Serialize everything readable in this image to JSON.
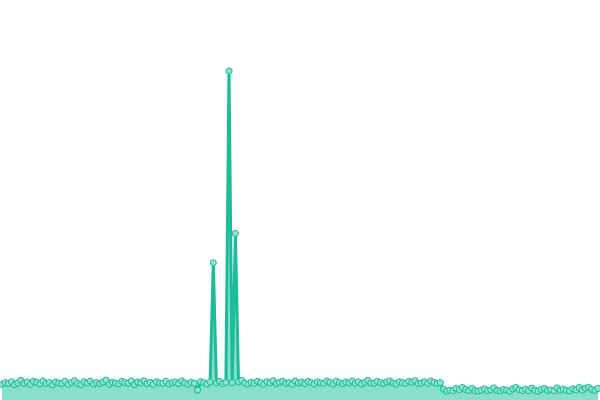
{
  "chart_data": {
    "type": "area",
    "title": "",
    "xlabel": "",
    "ylabel": "",
    "grid": false,
    "legend": "none",
    "ylim": [
      0,
      100
    ],
    "colors": {
      "line": "#1abc9c",
      "fill": "#88e0cc",
      "point_fill": "#8fe3cf"
    },
    "values": [
      3.6,
      4.1,
      3.8,
      4.4,
      3.5,
      4.0,
      4.8,
      3.9,
      4.3,
      3.6,
      4.5,
      4.2,
      3.7,
      4.6,
      3.9,
      4.1,
      3.4,
      4.3,
      4.0,
      3.8,
      4.5,
      3.6,
      4.2,
      4.7,
      3.9,
      3.5,
      4.4,
      4.0,
      4.6,
      3.7,
      4.1,
      3.8,
      4.3,
      4.9,
      3.6,
      4.2,
      4.0,
      3.7,
      4.5,
      4.1,
      3.9,
      4.6,
      3.5,
      4.3,
      4.0,
      4.7,
      3.8,
      4.2,
      3.6,
      4.4,
      4.0,
      3.9,
      4.5,
      3.7,
      4.1,
      4.3,
      3.8,
      4.6,
      4.0,
      3.6,
      4.2,
      3.9,
      1.8,
      4.4,
      4.1,
      3.7,
      4.3,
      41,
      4.0,
      4.5,
      3.8,
      4.2,
      100,
      4.1,
      50,
      4.3,
      4.8,
      4.0,
      3.7,
      4.2,
      3.9,
      4.5,
      4.1,
      3.6,
      4.4,
      4.0,
      4.7,
      3.8,
      4.2,
      4.5,
      3.9,
      4.1,
      3.6,
      4.6,
      4.0,
      4.3,
      3.8,
      4.5,
      4.1,
      3.7,
      4.4,
      4.0,
      3.9,
      4.6,
      4.2,
      3.7,
      4.5,
      4.1,
      3.8,
      4.3,
      4.0,
      4.6,
      3.9,
      4.4,
      3.7,
      4.2,
      4.8,
      4.0,
      3.9,
      4.5,
      4.1,
      3.8,
      4.3,
      4.6,
      4.0,
      3.7,
      4.4,
      4.1,
      3.9,
      4.5,
      4.2,
      4.7,
      3.8,
      4.0,
      4.4,
      3.9,
      4.6,
      4.2,
      3.8,
      4.1,
      2.1,
      1.5,
      1.8,
      1.6,
      2.3,
      1.9,
      2.6,
      2.0,
      1.7,
      2.4,
      1.6,
      1.5,
      1.8,
      2.2,
      1.6,
      1.9,
      2.5,
      1.7,
      1.6,
      2.0,
      1.8,
      1.5,
      2.2,
      2.6,
      1.9,
      1.7,
      2.1,
      1.6,
      2.4,
      1.8,
      1.5,
      2.0,
      2.3,
      1.7,
      1.9,
      1.6,
      2.5,
      1.8,
      2.1,
      1.7,
      1.6,
      2.2,
      1.9,
      2.6,
      1.8,
      2.4,
      2.7,
      2.0,
      1.7,
      2.3
    ]
  }
}
